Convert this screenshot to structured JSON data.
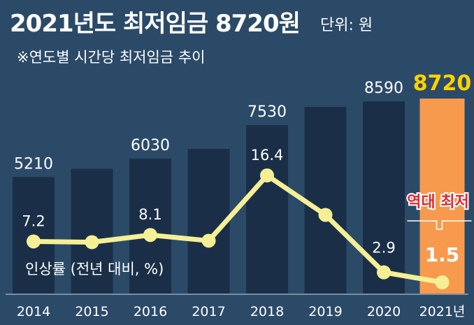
{
  "header": {
    "title": "2021년도 최저임금 8720원",
    "unit": "단위: 원",
    "subtitle": "※연도별 시간당 최저임금 추이"
  },
  "colors": {
    "background": "#2b4a68",
    "bar": "#1a2f47",
    "highlight_bar": "#f79a4d",
    "line": "#f5ef95",
    "highlight_value": "#ffd200",
    "annotation": "#e0292d"
  },
  "annotation": {
    "label": "역대 최저"
  },
  "chart_data": {
    "type": "bar",
    "categories": [
      "2014",
      "2015",
      "2016",
      "2017",
      "2018",
      "2019",
      "2020",
      "2021년"
    ],
    "bar_values": [
      5210,
      5580,
      6030,
      6470,
      7530,
      8350,
      8590,
      8720
    ],
    "bar_labels": [
      "5210",
      "",
      "6030",
      "",
      "7530",
      "",
      "8590",
      "8720"
    ],
    "highlight_index": 7,
    "line_series": {
      "name": "인상률 (전년 대비, %)",
      "values": [
        7.2,
        7.1,
        8.1,
        7.3,
        16.4,
        10.9,
        2.9,
        1.5
      ],
      "labels": [
        "7.2",
        "",
        "8.1",
        "",
        "16.4",
        "",
        "2.9",
        "1.5"
      ]
    },
    "ylim": [
      0,
      8720
    ],
    "grid": false
  }
}
